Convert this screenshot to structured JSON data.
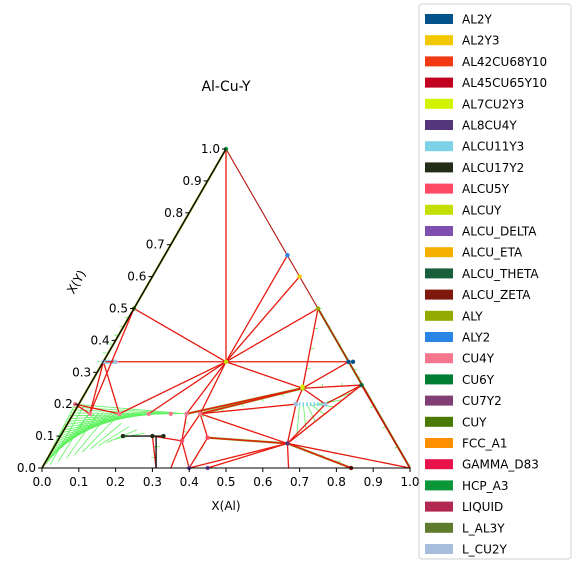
{
  "chart_data": {
    "type": "ternary-phase-diagram",
    "title": "Al-Cu-Y",
    "xlabel": "X(Al)",
    "ylabel": "X(Y)",
    "xlim": [
      0,
      1
    ],
    "ylim": [
      0,
      1
    ],
    "x_ticks": [
      "0.0",
      "0.1",
      "0.2",
      "0.3",
      "0.4",
      "0.5",
      "0.6",
      "0.7",
      "0.8",
      "0.9",
      "1.0"
    ],
    "y_ticks": [
      "0.0",
      "0.1",
      "0.2",
      "0.3",
      "0.4",
      "0.5",
      "0.6",
      "0.7",
      "0.8",
      "0.9",
      "1.0"
    ],
    "legend_position": "right",
    "legend": [
      {
        "name": "AL2Y",
        "color": "#00538a"
      },
      {
        "name": "AL2Y3",
        "color": "#f4c800"
      },
      {
        "name": "AL42CU68Y10",
        "color": "#f13a13"
      },
      {
        "name": "AL45CU65Y10",
        "color": "#c10020"
      },
      {
        "name": "AL7CU2Y3",
        "color": "#d2f300"
      },
      {
        "name": "AL8CU4Y",
        "color": "#53377a"
      },
      {
        "name": "ALCU11Y3",
        "color": "#7ed2e8"
      },
      {
        "name": "ALCU17Y2",
        "color": "#232c16"
      },
      {
        "name": "ALCU5Y",
        "color": "#ff4a66"
      },
      {
        "name": "ALCUY",
        "color": "#c3de00"
      },
      {
        "name": "ALCU_DELTA",
        "color": "#7e4fb0"
      },
      {
        "name": "ALCU_ETA",
        "color": "#f6b100"
      },
      {
        "name": "ALCU_THETA",
        "color": "#195e3a"
      },
      {
        "name": "ALCU_ZETA",
        "color": "#7f180d"
      },
      {
        "name": "ALY",
        "color": "#93aa00"
      },
      {
        "name": "ALY2",
        "color": "#2a86e6"
      },
      {
        "name": "CU4Y",
        "color": "#f6768e"
      },
      {
        "name": "CU6Y",
        "color": "#007d34"
      },
      {
        "name": "CU7Y2",
        "color": "#803e75"
      },
      {
        "name": "CUY",
        "color": "#4b7a00"
      },
      {
        "name": "FCC_A1",
        "color": "#ff8e00"
      },
      {
        "name": "GAMMA_D83",
        "color": "#e9124b"
      },
      {
        "name": "HCP_A3",
        "color": "#0b963a"
      },
      {
        "name": "LIQUID",
        "color": "#b32851"
      },
      {
        "name": "L_AL3Y",
        "color": "#5e7b2e"
      },
      {
        "name": "L_CU2Y",
        "color": "#a6bddb"
      }
    ],
    "triangle": [
      [
        0,
        0
      ],
      [
        1,
        0
      ],
      [
        0.5,
        1
      ]
    ],
    "red_tie_lines": [
      [
        [
          0.5,
          1.0
        ],
        [
          0.5,
          0.333
        ]
      ],
      [
        [
          0.25,
          0.5
        ],
        [
          0.5,
          0.333
        ]
      ],
      [
        [
          0.167,
          0.333
        ],
        [
          0.5,
          0.333
        ]
      ],
      [
        [
          0.5,
          0.333
        ],
        [
          0.833,
          0.333
        ]
      ],
      [
        [
          0.5,
          0.333
        ],
        [
          0.667,
          0.667
        ]
      ],
      [
        [
          0.5,
          0.333
        ],
        [
          0.7,
          0.6
        ]
      ],
      [
        [
          0.5,
          0.333
        ],
        [
          0.75,
          0.5
        ]
      ],
      [
        [
          0.5,
          0.333
        ],
        [
          0.708,
          0.25
        ]
      ],
      [
        [
          0.5,
          0.333
        ],
        [
          0.393,
          0.17
        ]
      ],
      [
        [
          0.5,
          0.333
        ],
        [
          0.43,
          0.17
        ]
      ],
      [
        [
          0.5,
          0.333
        ],
        [
          0.21,
          0.17
        ]
      ],
      [
        [
          0.5,
          0.333
        ],
        [
          0.29,
          0.17
        ]
      ],
      [
        [
          0.708,
          0.25
        ],
        [
          0.833,
          0.333
        ]
      ],
      [
        [
          0.708,
          0.25
        ],
        [
          0.75,
          0.5
        ]
      ],
      [
        [
          0.708,
          0.25
        ],
        [
          0.868,
          0.26
        ]
      ],
      [
        [
          0.708,
          0.25
        ],
        [
          0.43,
          0.17
        ]
      ],
      [
        [
          0.708,
          0.25
        ],
        [
          0.393,
          0.17
        ]
      ],
      [
        [
          0.708,
          0.25
        ],
        [
          0.69,
          0.2
        ]
      ],
      [
        [
          0.708,
          0.25
        ],
        [
          0.77,
          0.2
        ]
      ],
      [
        [
          0.43,
          0.17
        ],
        [
          0.69,
          0.2
        ]
      ],
      [
        [
          0.77,
          0.2
        ],
        [
          0.868,
          0.26
        ]
      ],
      [
        [
          0.77,
          0.2
        ],
        [
          0.667,
          0.077
        ]
      ],
      [
        [
          0.868,
          0.26
        ],
        [
          0.667,
          0.077
        ]
      ],
      [
        [
          0.868,
          0.26
        ],
        [
          1.0,
          0.0
        ]
      ],
      [
        [
          0.69,
          0.2
        ],
        [
          0.667,
          0.077
        ]
      ],
      [
        [
          0.667,
          0.077
        ],
        [
          0.43,
          0.17
        ]
      ],
      [
        [
          0.667,
          0.077
        ],
        [
          0.45,
          0.0
        ]
      ],
      [
        [
          0.667,
          0.077
        ],
        [
          0.4,
          0.0
        ]
      ],
      [
        [
          0.667,
          0.077
        ],
        [
          0.67,
          0.0
        ]
      ],
      [
        [
          0.667,
          0.077
        ],
        [
          0.84,
          0.0
        ]
      ],
      [
        [
          0.667,
          0.077
        ],
        [
          1.0,
          0.0
        ]
      ],
      [
        [
          0.667,
          0.077
        ],
        [
          0.45,
          0.095
        ]
      ],
      [
        [
          0.43,
          0.17
        ],
        [
          0.45,
          0.095
        ]
      ],
      [
        [
          0.45,
          0.095
        ],
        [
          0.4,
          0.0
        ]
      ],
      [
        [
          0.393,
          0.17
        ],
        [
          0.38,
          0.085
        ]
      ],
      [
        [
          0.38,
          0.085
        ],
        [
          0.4,
          0.0
        ]
      ],
      [
        [
          0.38,
          0.085
        ],
        [
          0.3,
          0.1
        ]
      ],
      [
        [
          0.38,
          0.085
        ],
        [
          0.35,
          0.0
        ]
      ],
      [
        [
          0.43,
          0.17
        ],
        [
          0.38,
          0.085
        ]
      ],
      [
        [
          0.3,
          0.1
        ],
        [
          0.31,
          0.0
        ]
      ],
      [
        [
          0.167,
          0.333
        ],
        [
          0.21,
          0.17
        ]
      ],
      [
        [
          0.167,
          0.333
        ],
        [
          0.13,
          0.17
        ]
      ],
      [
        [
          0.13,
          0.17
        ],
        [
          0.25,
          0.5
        ]
      ],
      [
        [
          0.13,
          0.17
        ],
        [
          0.09,
          0.2
        ]
      ],
      [
        [
          0.09,
          0.2
        ],
        [
          0.21,
          0.17
        ]
      ]
    ],
    "black_tie_lines": [
      [
        [
          0.22,
          0.1
        ],
        [
          0.31,
          0.1
        ]
      ],
      [
        [
          0.31,
          0.1
        ],
        [
          0.31,
          0.0
        ]
      ],
      [
        [
          0.31,
          0.1
        ],
        [
          0.33,
          0.1
        ]
      ]
    ],
    "boundary_lines": [
      [
        [
          0.167,
          0.333
        ],
        [
          0.5,
          0.333
        ]
      ],
      [
        [
          0.5,
          0.333
        ],
        [
          0.833,
          0.333
        ]
      ]
    ],
    "phase_points": [
      {
        "phase": "ALY2",
        "x": 0.667,
        "y": 0.667
      },
      {
        "phase": "AL2Y3",
        "x": 0.7,
        "y": 0.6
      },
      {
        "phase": "ALY",
        "x": 0.75,
        "y": 0.5
      },
      {
        "phase": "AL2Y",
        "x": 0.833,
        "y": 0.333
      },
      {
        "phase": "AL2Y",
        "x": 0.845,
        "y": 0.333
      },
      {
        "phase": "ALCUY",
        "x": 0.708,
        "y": 0.25
      },
      {
        "phase": "ALCUY",
        "x": 0.5,
        "y": 0.333
      },
      {
        "phase": "AL7CU2Y3",
        "x": 0.708,
        "y": 0.255
      },
      {
        "phase": "ALCU_THETA",
        "x": 0.868,
        "y": 0.26
      },
      {
        "phase": "ALCU11Y3",
        "x": 0.69,
        "y": 0.2
      },
      {
        "phase": "ALCU11Y3",
        "x": 0.77,
        "y": 0.2
      },
      {
        "phase": "AL8CU4Y",
        "x": 0.667,
        "y": 0.077
      },
      {
        "phase": "ALCU_DELTA",
        "x": 0.45,
        "y": 0.0
      },
      {
        "phase": "ALCU_DELTA",
        "x": 0.4,
        "y": 0.0
      },
      {
        "phase": "ALCU_ZETA",
        "x": 0.84,
        "y": 0.0
      },
      {
        "phase": "CU4Y",
        "x": 0.43,
        "y": 0.17
      },
      {
        "phase": "CU4Y",
        "x": 0.393,
        "y": 0.17
      },
      {
        "phase": "CU4Y",
        "x": 0.35,
        "y": 0.17
      },
      {
        "phase": "CU4Y",
        "x": 0.29,
        "y": 0.17
      },
      {
        "phase": "CU4Y",
        "x": 0.21,
        "y": 0.17
      },
      {
        "phase": "CU4Y",
        "x": 0.13,
        "y": 0.17
      },
      {
        "phase": "CU4Y",
        "x": 0.09,
        "y": 0.2
      },
      {
        "phase": "ALCU5Y",
        "x": 0.45,
        "y": 0.095
      },
      {
        "phase": "ALCU5Y",
        "x": 0.38,
        "y": 0.085
      },
      {
        "phase": "ALCU17Y2",
        "x": 0.22,
        "y": 0.1
      },
      {
        "phase": "ALCU17Y2",
        "x": 0.3,
        "y": 0.1
      },
      {
        "phase": "ALCU17Y2",
        "x": 0.33,
        "y": 0.1
      },
      {
        "phase": "L_CU2Y",
        "x": 0.167,
        "y": 0.333
      },
      {
        "phase": "L_CU2Y",
        "x": 0.2,
        "y": 0.333
      },
      {
        "phase": "L_CU2Y",
        "x": 0.69,
        "y": 0.2
      },
      {
        "phase": "L_CU2Y",
        "x": 0.77,
        "y": 0.2
      },
      {
        "phase": "CUY",
        "x": 0.25,
        "y": 0.5
      },
      {
        "phase": "HCP_A3",
        "x": 0.5,
        "y": 1.0
      }
    ]
  }
}
